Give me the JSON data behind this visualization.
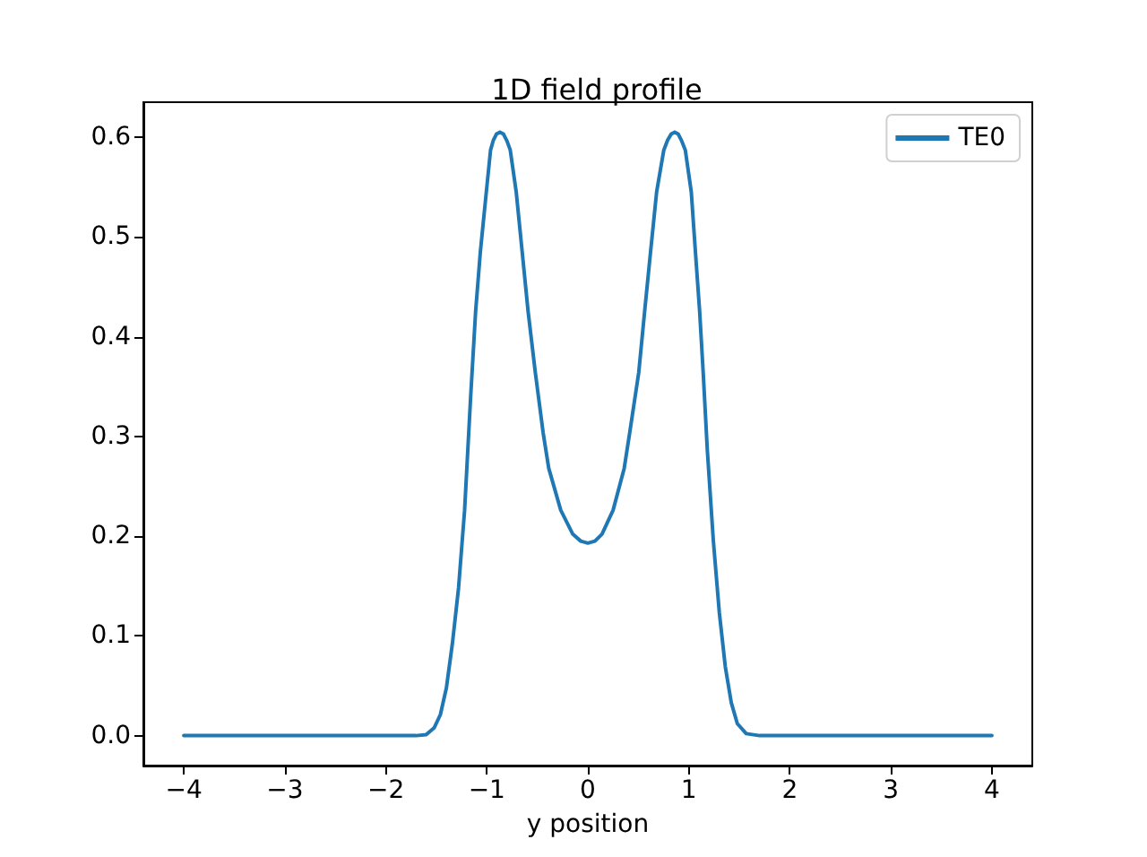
{
  "chart_data": {
    "type": "line",
    "title": "1D field profile",
    "xlabel": "y position",
    "x": [
      -4,
      -3,
      -2,
      -1.7,
      -1.6,
      -1.52,
      -1.46,
      -1.4,
      -1.34,
      -1.28,
      -1.22,
      -1.16,
      -1.111,
      -1.064,
      -1.005,
      -0.963,
      -0.935,
      -0.905,
      -0.87,
      -0.835,
      -0.8,
      -0.768,
      -0.709,
      -0.65,
      -0.591,
      -0.52,
      -0.443,
      -0.387,
      -0.268,
      -0.149,
      -0.07,
      0,
      0.07,
      0.14,
      0.25,
      0.36,
      0.415,
      0.504,
      0.562,
      0.621,
      0.681,
      0.752,
      0.79,
      0.825,
      0.86,
      0.895,
      0.93,
      0.965,
      1.024,
      1.065,
      1.107,
      1.142,
      1.183,
      1.242,
      1.302,
      1.361,
      1.42,
      1.48,
      1.568,
      1.7,
      2,
      3,
      4
    ],
    "series": [
      {
        "name": "TE0",
        "color": "#1f77b4",
        "values": [
          0,
          0,
          0,
          0,
          0.001,
          0.008,
          0.021,
          0.048,
          0.093,
          0.148,
          0.226,
          0.34,
          0.425,
          0.485,
          0.545,
          0.587,
          0.597,
          0.603,
          0.605,
          0.603,
          0.596,
          0.587,
          0.545,
          0.485,
          0.425,
          0.364,
          0.304,
          0.268,
          0.226,
          0.202,
          0.195,
          0.193,
          0.195,
          0.202,
          0.226,
          0.268,
          0.304,
          0.364,
          0.425,
          0.485,
          0.545,
          0.587,
          0.597,
          0.603,
          0.605,
          0.603,
          0.596,
          0.587,
          0.545,
          0.485,
          0.425,
          0.364,
          0.286,
          0.196,
          0.123,
          0.069,
          0.033,
          0.012,
          0.002,
          0,
          0,
          0,
          0
        ]
      }
    ],
    "xlim": [
      -4.4,
      4.4
    ],
    "ylim": [
      -0.03,
      0.635
    ],
    "xticks": [
      {
        "value": -4,
        "label": "−4"
      },
      {
        "value": -3,
        "label": "−3"
      },
      {
        "value": -2,
        "label": "−2"
      },
      {
        "value": -1,
        "label": "−1"
      },
      0,
      1,
      2,
      3,
      4
    ],
    "yticks": [
      {
        "value": 0,
        "label": "0.0"
      },
      0.1,
      0.2,
      0.3,
      0.4,
      0.5,
      0.6
    ],
    "legend": "top right",
    "marker": "none",
    "line_style": "solid"
  }
}
